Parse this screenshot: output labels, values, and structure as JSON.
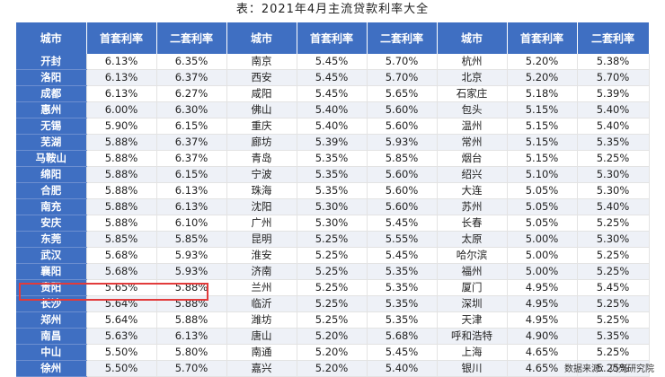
{
  "title": "表：2021年4月主流贷款利率大全",
  "source": "数据来源：贝壳研究院",
  "headers": [
    "城市",
    "首套利率",
    "二套利率",
    "城市",
    "首套利率",
    "二套利率",
    "城市",
    "首套利率",
    "二套利率"
  ],
  "rows": [
    [
      "开封",
      "6.13%",
      "6.35%",
      "南京",
      "5.45%",
      "5.70%",
      "杭州",
      "5.20%",
      "5.38%"
    ],
    [
      "洛阳",
      "6.13%",
      "6.37%",
      "西安",
      "5.45%",
      "5.70%",
      "北京",
      "5.20%",
      "5.70%"
    ],
    [
      "成都",
      "6.13%",
      "6.27%",
      "咸阳",
      "5.45%",
      "5.65%",
      "石家庄",
      "5.18%",
      "5.39%"
    ],
    [
      "惠州",
      "6.00%",
      "6.30%",
      "佛山",
      "5.40%",
      "5.60%",
      "包头",
      "5.15%",
      "5.40%"
    ],
    [
      "无锡",
      "5.90%",
      "6.15%",
      "重庆",
      "5.40%",
      "5.60%",
      "温州",
      "5.15%",
      "5.40%"
    ],
    [
      "芜湖",
      "5.88%",
      "6.37%",
      "廊坊",
      "5.39%",
      "5.93%",
      "常州",
      "5.15%",
      "5.35%"
    ],
    [
      "马鞍山",
      "5.88%",
      "6.37%",
      "青岛",
      "5.35%",
      "5.85%",
      "烟台",
      "5.15%",
      "5.25%"
    ],
    [
      "绵阳",
      "5.88%",
      "6.15%",
      "宁波",
      "5.35%",
      "5.60%",
      "绍兴",
      "5.10%",
      "5.30%"
    ],
    [
      "合肥",
      "5.88%",
      "6.13%",
      "珠海",
      "5.35%",
      "5.60%",
      "大连",
      "5.05%",
      "5.30%"
    ],
    [
      "南充",
      "5.88%",
      "6.13%",
      "沈阳",
      "5.30%",
      "5.60%",
      "苏州",
      "5.05%",
      "5.40%"
    ],
    [
      "安庆",
      "5.88%",
      "6.10%",
      "广州",
      "5.30%",
      "5.45%",
      "长春",
      "5.05%",
      "5.25%"
    ],
    [
      "东莞",
      "5.85%",
      "5.85%",
      "昆明",
      "5.25%",
      "5.55%",
      "太原",
      "5.00%",
      "5.30%"
    ],
    [
      "武汉",
      "5.68%",
      "5.93%",
      "淮安",
      "5.25%",
      "5.45%",
      "哈尔滨",
      "5.00%",
      "5.25%"
    ],
    [
      "襄阳",
      "5.68%",
      "5.93%",
      "济南",
      "5.25%",
      "5.35%",
      "福州",
      "5.00%",
      "5.25%"
    ],
    [
      "贵阳",
      "5.65%",
      "5.88%",
      "兰州",
      "5.25%",
      "5.35%",
      "厦门",
      "4.95%",
      "5.45%"
    ],
    [
      "长沙",
      "5.64%",
      "5.88%",
      "临沂",
      "5.25%",
      "5.35%",
      "深圳",
      "4.95%",
      "5.25%"
    ],
    [
      "郑州",
      "5.64%",
      "5.88%",
      "潍坊",
      "5.25%",
      "5.35%",
      "天津",
      "4.95%",
      "5.25%"
    ],
    [
      "南昌",
      "5.63%",
      "6.13%",
      "唐山",
      "5.20%",
      "5.68%",
      "呼和浩特",
      "4.90%",
      "5.35%"
    ],
    [
      "中山",
      "5.50%",
      "5.80%",
      "南通",
      "5.20%",
      "5.45%",
      "上海",
      "4.65%",
      "5.25%"
    ],
    [
      "徐州",
      "5.50%",
      "5.70%",
      "嘉兴",
      "5.20%",
      "5.40%",
      "银川",
      "4.65%",
      "5.25%"
    ]
  ],
  "colors": {
    "header": "#3f6fc2",
    "highlight": "#e23b3b",
    "stripe": "#eef1f7"
  }
}
